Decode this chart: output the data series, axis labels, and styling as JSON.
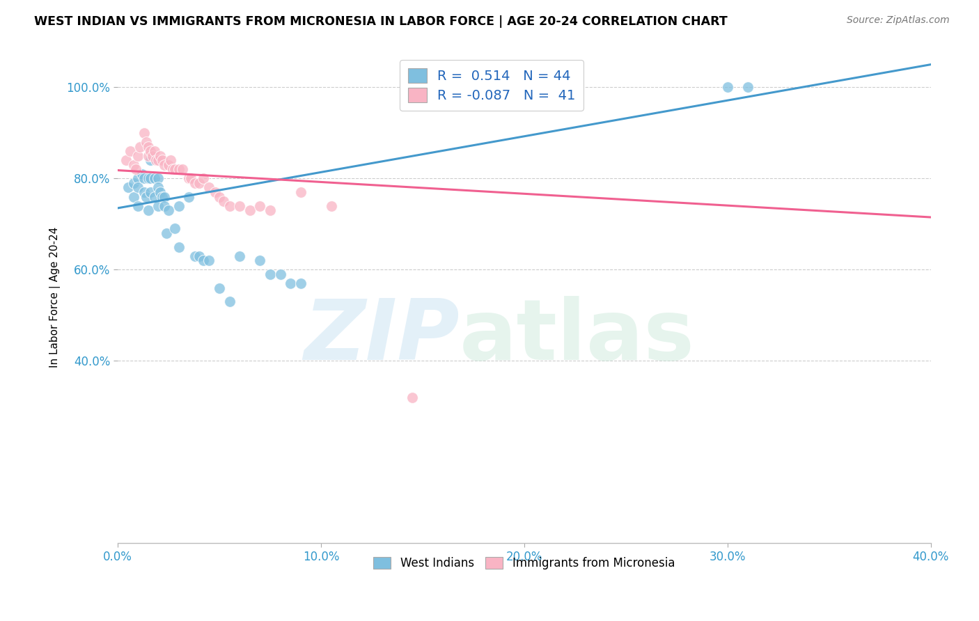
{
  "title": "WEST INDIAN VS IMMIGRANTS FROM MICRONESIA IN LABOR FORCE | AGE 20-24 CORRELATION CHART",
  "source": "Source: ZipAtlas.com",
  "xlabel": "",
  "ylabel": "In Labor Force | Age 20-24",
  "xlim": [
    0.0,
    0.4
  ],
  "ylim": [
    0.0,
    1.08
  ],
  "yticks": [
    0.4,
    0.6,
    0.8,
    1.0
  ],
  "ytick_labels": [
    "40.0%",
    "60.0%",
    "80.0%",
    "100.0%"
  ],
  "xtick_labels": [
    "0.0%",
    "10.0%",
    "20.0%",
    "30.0%",
    "40.0%"
  ],
  "xticks": [
    0.0,
    0.1,
    0.2,
    0.3,
    0.4
  ],
  "blue_color": "#7fbfdf",
  "pink_color": "#f9b4c4",
  "blue_line_color": "#4499cc",
  "pink_line_color": "#f06090",
  "legend_R_blue": "0.514",
  "legend_N_blue": "44",
  "legend_R_pink": "-0.087",
  "legend_N_pink": "41",
  "blue_scatter_x": [
    0.005,
    0.008,
    0.008,
    0.01,
    0.01,
    0.01,
    0.012,
    0.013,
    0.013,
    0.014,
    0.015,
    0.015,
    0.016,
    0.016,
    0.016,
    0.018,
    0.018,
    0.02,
    0.02,
    0.02,
    0.021,
    0.022,
    0.023,
    0.023,
    0.024,
    0.025,
    0.028,
    0.03,
    0.03,
    0.035,
    0.038,
    0.04,
    0.042,
    0.045,
    0.05,
    0.055,
    0.06,
    0.07,
    0.075,
    0.08,
    0.085,
    0.09,
    0.3,
    0.31
  ],
  "blue_scatter_y": [
    0.78,
    0.79,
    0.76,
    0.8,
    0.78,
    0.74,
    0.81,
    0.8,
    0.77,
    0.76,
    0.8,
    0.73,
    0.84,
    0.8,
    0.77,
    0.8,
    0.76,
    0.8,
    0.78,
    0.74,
    0.77,
    0.76,
    0.76,
    0.74,
    0.68,
    0.73,
    0.69,
    0.74,
    0.65,
    0.76,
    0.63,
    0.63,
    0.62,
    0.62,
    0.56,
    0.53,
    0.63,
    0.62,
    0.59,
    0.59,
    0.57,
    0.57,
    1.0,
    1.0
  ],
  "pink_scatter_x": [
    0.004,
    0.006,
    0.008,
    0.009,
    0.01,
    0.011,
    0.013,
    0.014,
    0.015,
    0.015,
    0.016,
    0.017,
    0.018,
    0.019,
    0.02,
    0.021,
    0.022,
    0.023,
    0.025,
    0.026,
    0.027,
    0.028,
    0.03,
    0.032,
    0.035,
    0.036,
    0.038,
    0.04,
    0.042,
    0.045,
    0.048,
    0.05,
    0.052,
    0.055,
    0.06,
    0.065,
    0.07,
    0.075,
    0.09,
    0.105,
    0.145
  ],
  "pink_scatter_y": [
    0.84,
    0.86,
    0.83,
    0.82,
    0.85,
    0.87,
    0.9,
    0.88,
    0.87,
    0.85,
    0.86,
    0.85,
    0.86,
    0.84,
    0.84,
    0.85,
    0.84,
    0.83,
    0.83,
    0.84,
    0.82,
    0.82,
    0.82,
    0.82,
    0.8,
    0.8,
    0.79,
    0.79,
    0.8,
    0.78,
    0.77,
    0.76,
    0.75,
    0.74,
    0.74,
    0.73,
    0.74,
    0.73,
    0.77,
    0.74,
    0.32
  ],
  "blue_line_x": [
    0.0,
    0.4
  ],
  "blue_line_y": [
    0.735,
    1.05
  ],
  "pink_line_x": [
    0.0,
    0.4
  ],
  "pink_line_y": [
    0.818,
    0.715
  ]
}
